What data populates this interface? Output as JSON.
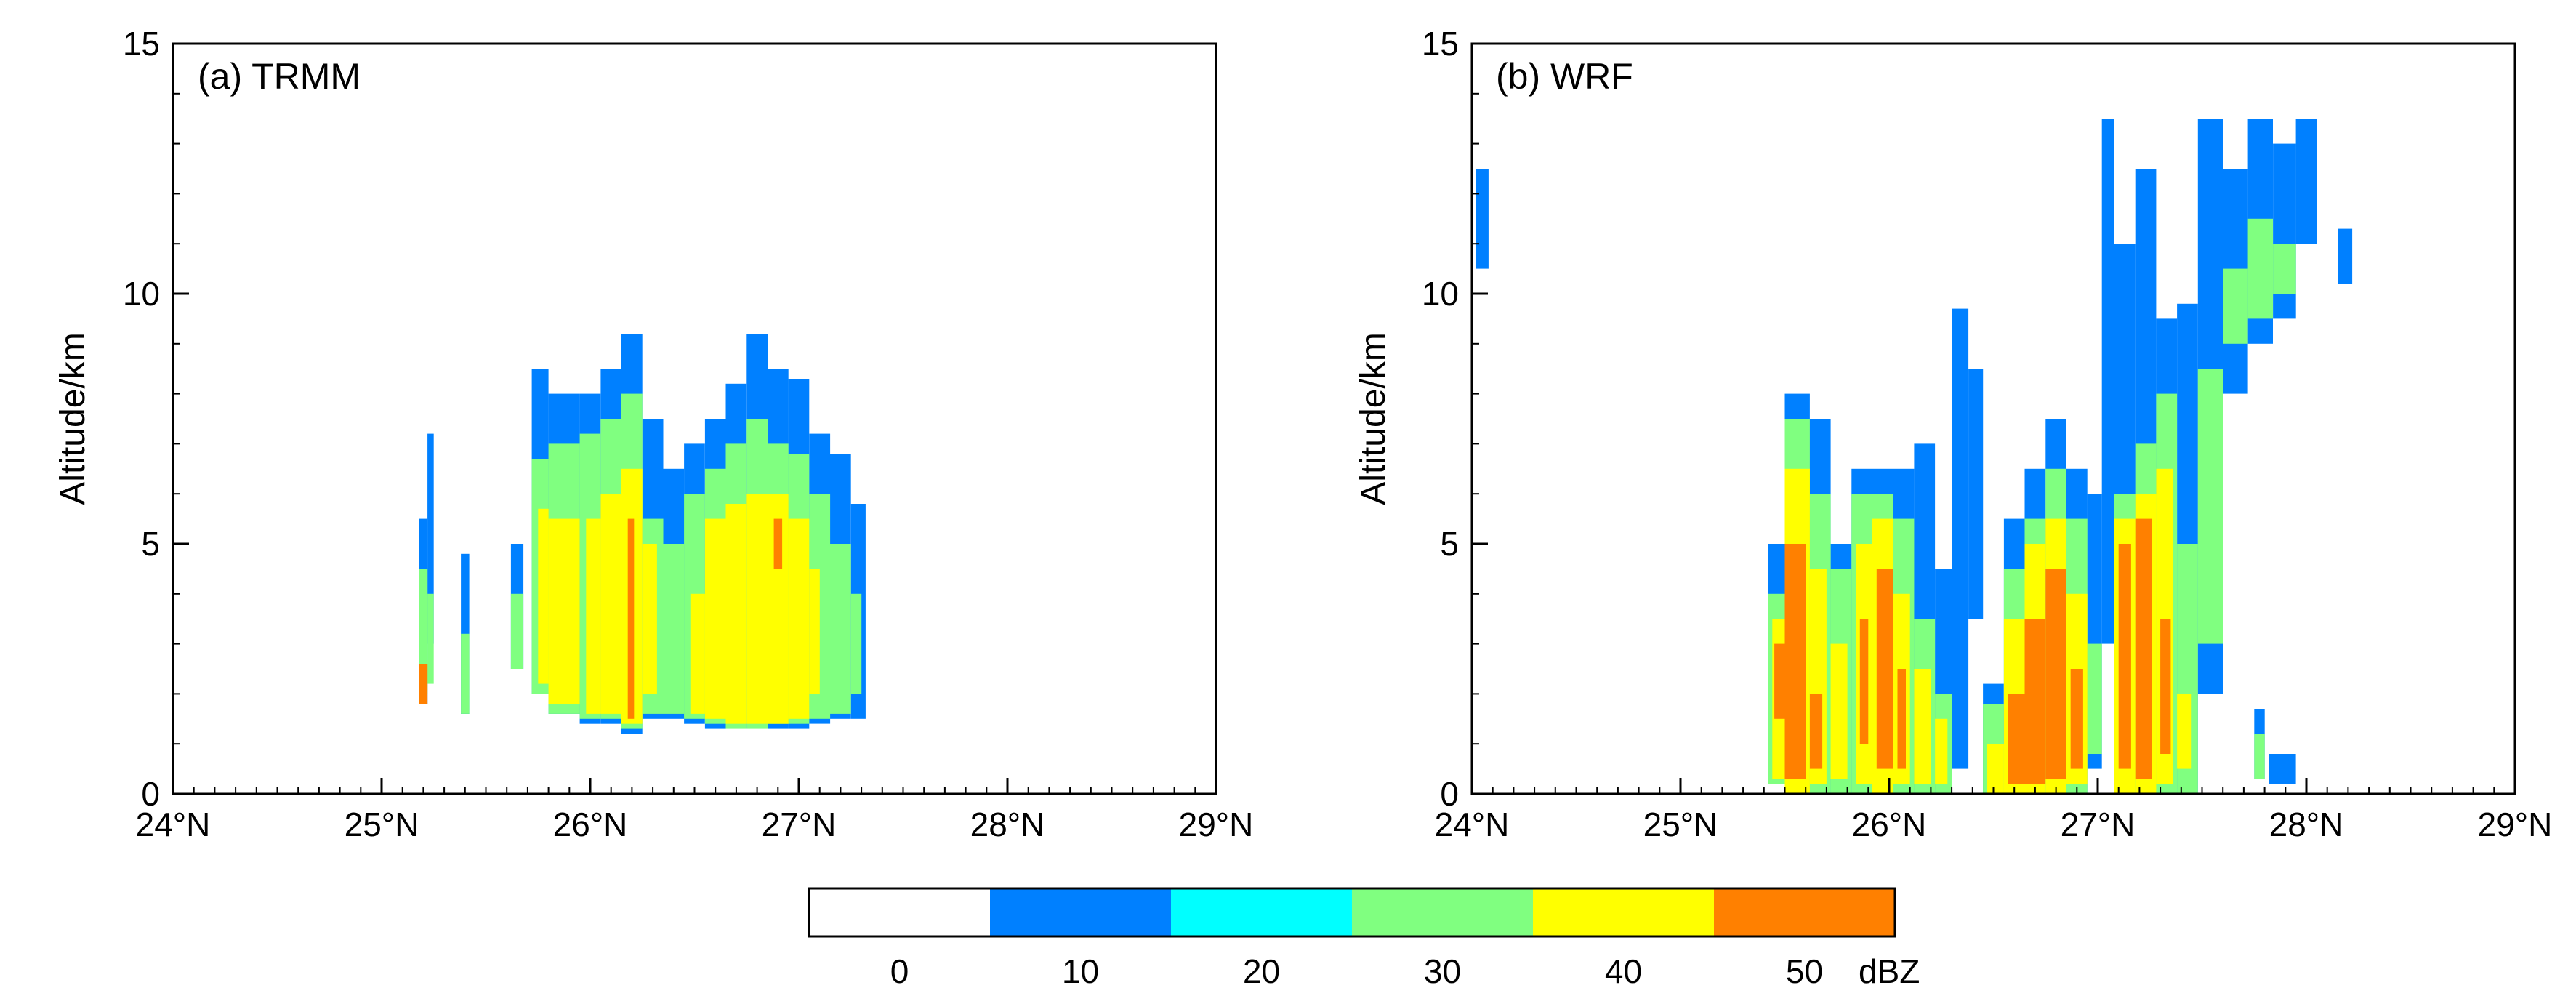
{
  "chart_data": [
    {
      "type": "heatmap",
      "panel_label": "(a)  TRMM",
      "ylabel": "Altitude/km",
      "xlabel": "",
      "xlim": [
        24,
        29
      ],
      "ylim": [
        0,
        15
      ],
      "xticks": [
        "24°N",
        "25°N",
        "26°N",
        "27°N",
        "28°N",
        "29°N"
      ],
      "yticks": [
        "0",
        "5",
        "10",
        "15"
      ],
      "cells_note": "Each cell: [lat_start, lat_end, alt_bottom_km, alt_top_km, reflectivity_dBZ]",
      "cells": [
        [
          25.18,
          25.22,
          1.8,
          5.5,
          10
        ],
        [
          25.18,
          25.22,
          2.0,
          4.5,
          30
        ],
        [
          25.18,
          25.22,
          1.8,
          2.6,
          50
        ],
        [
          25.22,
          25.25,
          3.0,
          7.2,
          10
        ],
        [
          25.22,
          25.25,
          2.2,
          4.0,
          30
        ],
        [
          25.38,
          25.42,
          1.6,
          4.8,
          10
        ],
        [
          25.38,
          25.42,
          1.6,
          3.2,
          30
        ],
        [
          25.62,
          25.68,
          2.5,
          5.0,
          10
        ],
        [
          25.62,
          25.68,
          2.5,
          4.0,
          30
        ],
        [
          25.72,
          25.8,
          2.0,
          8.5,
          10
        ],
        [
          25.72,
          25.8,
          2.0,
          6.7,
          30
        ],
        [
          25.75,
          25.8,
          2.2,
          5.7,
          40
        ],
        [
          25.8,
          25.95,
          1.6,
          8.0,
          10
        ],
        [
          25.8,
          25.95,
          1.6,
          7.0,
          30
        ],
        [
          25.8,
          25.95,
          1.8,
          5.5,
          40
        ],
        [
          25.95,
          26.05,
          1.4,
          8.0,
          10
        ],
        [
          25.95,
          26.05,
          1.5,
          7.2,
          30
        ],
        [
          25.98,
          26.05,
          1.6,
          5.5,
          40
        ],
        [
          26.05,
          26.15,
          1.4,
          8.5,
          10
        ],
        [
          26.05,
          26.15,
          1.5,
          7.5,
          30
        ],
        [
          26.05,
          26.15,
          1.6,
          6.0,
          40
        ],
        [
          26.15,
          26.25,
          1.2,
          9.2,
          10
        ],
        [
          26.15,
          26.25,
          1.3,
          8.0,
          30
        ],
        [
          26.15,
          26.25,
          1.4,
          6.5,
          40
        ],
        [
          26.18,
          26.21,
          1.5,
          5.5,
          50
        ],
        [
          26.25,
          26.35,
          1.5,
          7.5,
          10
        ],
        [
          26.25,
          26.35,
          1.6,
          5.5,
          30
        ],
        [
          26.25,
          26.32,
          2.0,
          5.0,
          40
        ],
        [
          26.35,
          26.45,
          1.5,
          6.5,
          10
        ],
        [
          26.35,
          26.45,
          1.6,
          5.0,
          30
        ],
        [
          26.45,
          26.55,
          1.4,
          7.0,
          10
        ],
        [
          26.45,
          26.55,
          1.5,
          6.0,
          30
        ],
        [
          26.48,
          26.55,
          1.6,
          4.0,
          40
        ],
        [
          26.55,
          26.65,
          1.3,
          7.5,
          10
        ],
        [
          26.55,
          26.65,
          1.4,
          6.5,
          30
        ],
        [
          26.55,
          26.65,
          1.5,
          5.5,
          40
        ],
        [
          26.65,
          26.75,
          1.3,
          8.2,
          10
        ],
        [
          26.65,
          26.75,
          1.3,
          7.0,
          30
        ],
        [
          26.65,
          26.75,
          1.4,
          5.8,
          40
        ],
        [
          26.75,
          26.85,
          1.3,
          9.2,
          10
        ],
        [
          26.75,
          26.85,
          1.3,
          7.5,
          30
        ],
        [
          26.75,
          26.85,
          1.4,
          6.0,
          40
        ],
        [
          26.85,
          26.95,
          1.3,
          8.5,
          10
        ],
        [
          26.85,
          26.95,
          1.4,
          7.0,
          30
        ],
        [
          26.85,
          26.95,
          1.4,
          6.0,
          40
        ],
        [
          26.88,
          26.92,
          4.5,
          5.5,
          50
        ],
        [
          26.95,
          27.05,
          1.3,
          8.3,
          10
        ],
        [
          26.95,
          27.05,
          1.4,
          6.8,
          30
        ],
        [
          26.95,
          27.05,
          1.5,
          5.5,
          40
        ],
        [
          27.05,
          27.15,
          1.4,
          7.2,
          10
        ],
        [
          27.05,
          27.15,
          1.5,
          6.0,
          30
        ],
        [
          27.05,
          27.1,
          2.0,
          4.5,
          40
        ],
        [
          27.15,
          27.25,
          1.5,
          6.8,
          10
        ],
        [
          27.15,
          27.25,
          1.6,
          5.0,
          30
        ],
        [
          27.25,
          27.32,
          1.5,
          5.8,
          10
        ],
        [
          27.25,
          27.3,
          2.0,
          4.0,
          30
        ]
      ]
    },
    {
      "type": "heatmap",
      "panel_label": "(b)  WRF",
      "ylabel": "Altitude/km",
      "xlabel": "",
      "xlim": [
        24,
        29
      ],
      "ylim": [
        0,
        15
      ],
      "xticks": [
        "24°N",
        "25°N",
        "26°N",
        "27°N",
        "28°N",
        "29°N"
      ],
      "yticks": [
        "0",
        "5",
        "10",
        "15"
      ],
      "cells_note": "Each cell: [lat_start, lat_end, alt_bottom_km, alt_top_km, reflectivity_dBZ]",
      "cells": [
        [
          24.02,
          24.08,
          10.5,
          12.5,
          10
        ],
        [
          25.42,
          25.5,
          0.2,
          5.0,
          10
        ],
        [
          25.42,
          25.5,
          0.2,
          4.0,
          30
        ],
        [
          25.44,
          25.5,
          0.3,
          3.5,
          40
        ],
        [
          25.45,
          25.5,
          1.5,
          3.0,
          50
        ],
        [
          25.5,
          25.62,
          0.0,
          8.0,
          10
        ],
        [
          25.5,
          25.62,
          0.0,
          7.5,
          30
        ],
        [
          25.5,
          25.62,
          0.0,
          6.5,
          40
        ],
        [
          25.5,
          25.6,
          0.3,
          5.0,
          50
        ],
        [
          25.62,
          25.72,
          0.0,
          7.5,
          10
        ],
        [
          25.62,
          25.72,
          0.0,
          6.0,
          30
        ],
        [
          25.62,
          25.7,
          0.2,
          4.5,
          40
        ],
        [
          25.62,
          25.68,
          0.5,
          2.0,
          50
        ],
        [
          25.72,
          25.82,
          0.0,
          5.0,
          10
        ],
        [
          25.72,
          25.82,
          0.0,
          4.5,
          30
        ],
        [
          25.72,
          25.8,
          0.3,
          3.0,
          40
        ],
        [
          25.82,
          25.92,
          0.0,
          6.5,
          10
        ],
        [
          25.82,
          25.92,
          0.0,
          6.0,
          30
        ],
        [
          25.84,
          25.92,
          0.2,
          5.0,
          40
        ],
        [
          25.86,
          25.9,
          1.0,
          3.5,
          50
        ],
        [
          25.92,
          26.02,
          0.0,
          6.5,
          10
        ],
        [
          25.92,
          26.02,
          0.0,
          6.0,
          30
        ],
        [
          25.92,
          26.02,
          0.0,
          5.5,
          40
        ],
        [
          25.94,
          26.02,
          0.5,
          4.5,
          50
        ],
        [
          26.02,
          26.12,
          0.0,
          6.5,
          10
        ],
        [
          26.02,
          26.12,
          0.0,
          5.5,
          30
        ],
        [
          26.02,
          26.1,
          0.2,
          4.0,
          40
        ],
        [
          26.04,
          26.08,
          0.5,
          2.5,
          50
        ],
        [
          26.12,
          26.22,
          0.0,
          7.0,
          10
        ],
        [
          26.12,
          26.22,
          0.0,
          3.5,
          30
        ],
        [
          26.12,
          26.2,
          0.2,
          2.5,
          40
        ],
        [
          26.22,
          26.3,
          0.0,
          4.5,
          10
        ],
        [
          26.22,
          26.3,
          0.0,
          2.0,
          30
        ],
        [
          26.22,
          26.28,
          0.2,
          1.5,
          40
        ],
        [
          26.3,
          26.38,
          0.5,
          9.7,
          10
        ],
        [
          26.38,
          26.45,
          3.5,
          8.5,
          10
        ],
        [
          26.45,
          26.55,
          0.0,
          2.2,
          10
        ],
        [
          26.45,
          26.55,
          0.0,
          1.8,
          30
        ],
        [
          26.47,
          26.55,
          0.0,
          1.0,
          40
        ],
        [
          26.55,
          26.65,
          0.0,
          5.5,
          10
        ],
        [
          26.55,
          26.65,
          0.0,
          4.5,
          30
        ],
        [
          26.55,
          26.65,
          0.0,
          3.5,
          40
        ],
        [
          26.57,
          26.65,
          0.2,
          2.0,
          50
        ],
        [
          26.65,
          26.75,
          0.0,
          6.5,
          10
        ],
        [
          26.65,
          26.75,
          0.0,
          5.5,
          30
        ],
        [
          26.65,
          26.75,
          0.0,
          5.0,
          40
        ],
        [
          26.65,
          26.75,
          0.2,
          3.5,
          50
        ],
        [
          26.75,
          26.85,
          0.0,
          7.5,
          10
        ],
        [
          26.75,
          26.85,
          0.0,
          6.5,
          30
        ],
        [
          26.75,
          26.85,
          0.0,
          5.5,
          40
        ],
        [
          26.75,
          26.85,
          0.3,
          4.5,
          50
        ],
        [
          26.85,
          26.95,
          0.0,
          6.5,
          10
        ],
        [
          26.85,
          26.95,
          0.0,
          5.5,
          30
        ],
        [
          26.85,
          26.95,
          0.2,
          4.0,
          40
        ],
        [
          26.87,
          26.93,
          0.5,
          2.5,
          50
        ],
        [
          26.95,
          27.02,
          0.5,
          6.0,
          10
        ],
        [
          26.95,
          27.02,
          0.8,
          3.0,
          30
        ],
        [
          27.02,
          27.08,
          3.0,
          13.5,
          10
        ],
        [
          27.08,
          27.18,
          0.0,
          11.0,
          10
        ],
        [
          27.08,
          27.18,
          0.0,
          6.0,
          30
        ],
        [
          27.08,
          27.18,
          0.0,
          5.5,
          40
        ],
        [
          27.1,
          27.16,
          0.5,
          5.0,
          50
        ],
        [
          27.18,
          27.28,
          0.0,
          12.5,
          10
        ],
        [
          27.18,
          27.28,
          0.0,
          7.0,
          30
        ],
        [
          27.18,
          27.28,
          0.0,
          6.0,
          40
        ],
        [
          27.18,
          27.26,
          0.3,
          5.5,
          50
        ],
        [
          27.28,
          27.38,
          0.0,
          9.5,
          10
        ],
        [
          27.28,
          27.38,
          0.0,
          8.0,
          30
        ],
        [
          27.28,
          27.36,
          0.2,
          6.5,
          40
        ],
        [
          27.3,
          27.35,
          0.8,
          3.5,
          50
        ],
        [
          27.38,
          27.48,
          0.0,
          9.8,
          10
        ],
        [
          27.38,
          27.48,
          0.0,
          5.0,
          30
        ],
        [
          27.38,
          27.45,
          0.5,
          2.0,
          40
        ],
        [
          27.48,
          27.6,
          2.0,
          13.5,
          10
        ],
        [
          27.48,
          27.6,
          3.0,
          8.5,
          30
        ],
        [
          27.6,
          27.72,
          8.0,
          12.5,
          10
        ],
        [
          27.6,
          27.72,
          9.0,
          10.5,
          30
        ],
        [
          27.72,
          27.84,
          9.0,
          13.5,
          10
        ],
        [
          27.72,
          27.84,
          9.5,
          11.5,
          30
        ],
        [
          27.84,
          27.95,
          9.5,
          13.0,
          10
        ],
        [
          27.84,
          27.95,
          10.0,
          11.0,
          30
        ],
        [
          27.95,
          28.05,
          11.0,
          13.5,
          10
        ],
        [
          27.75,
          27.8,
          0.3,
          1.7,
          10
        ],
        [
          27.75,
          27.8,
          0.3,
          1.2,
          30
        ],
        [
          27.82,
          27.95,
          0.2,
          0.8,
          10
        ],
        [
          28.15,
          28.22,
          10.2,
          11.3,
          10
        ]
      ]
    }
  ],
  "colorbar": {
    "ticks": [
      "0",
      "10",
      "20",
      "30",
      "40",
      "50"
    ],
    "unit": "dBZ",
    "colors": [
      "#ffffff",
      "#0080ff",
      "#00ffff",
      "#80ff80",
      "#ffff00",
      "#ff8000"
    ],
    "level_map": {
      "0": "#ffffff",
      "10": "#0080ff",
      "20": "#00ffff",
      "30": "#80ff80",
      "40": "#ffff00",
      "50": "#ff8000"
    }
  }
}
